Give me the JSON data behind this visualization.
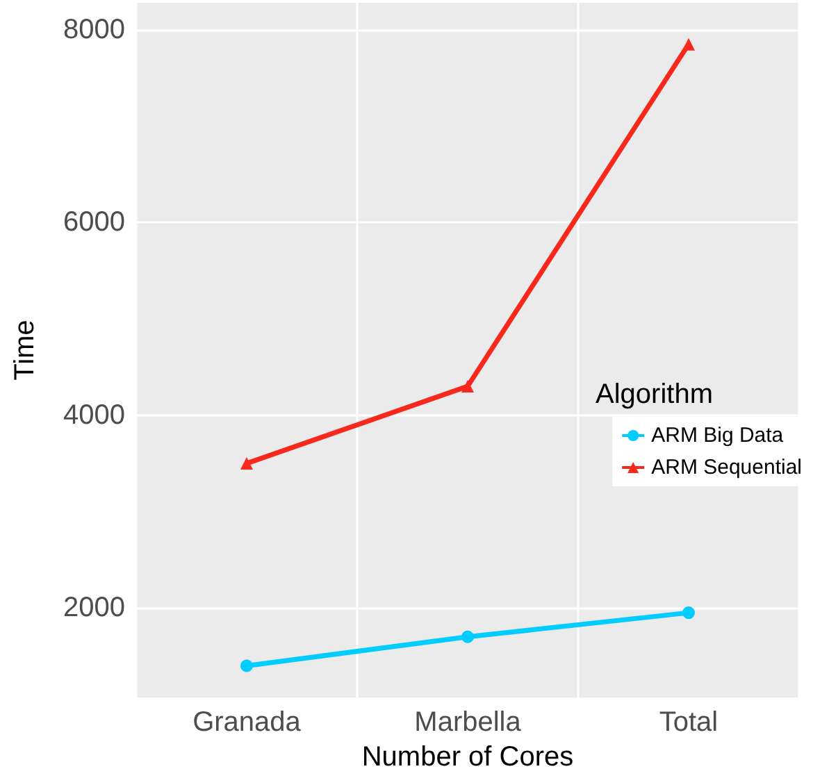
{
  "chart_data": {
    "type": "line",
    "xlabel": "Number of Cores",
    "ylabel": "Time",
    "legend_title": "Algorithm",
    "categories": [
      "Granada",
      "Marbella",
      "Total"
    ],
    "series": [
      {
        "name": "ARM Big Data",
        "color": "#00ccff",
        "marker": "circle",
        "values": [
          1400,
          1700,
          1950
        ]
      },
      {
        "name": "ARM Sequential",
        "color": "#f8291c",
        "marker": "triangle",
        "values": [
          3500,
          4300,
          7850
        ]
      }
    ],
    "ylim": [
      1070,
      8280
    ],
    "yticks": [
      2000,
      4000,
      6000,
      8000
    ],
    "grid": true,
    "legend": "right"
  }
}
